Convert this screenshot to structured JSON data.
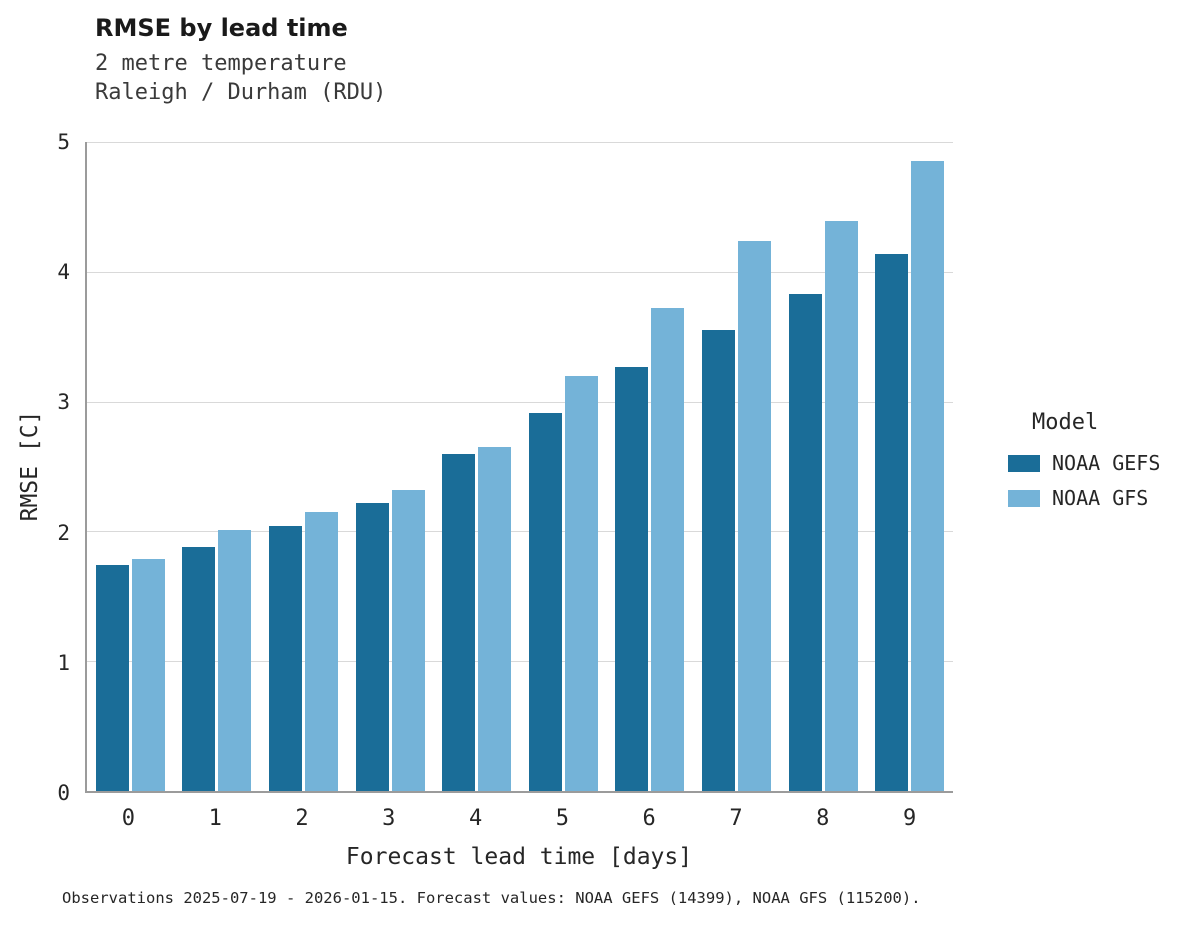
{
  "chart_data": {
    "type": "bar",
    "title": "RMSE by lead time",
    "subtitle": [
      "2 metre temperature",
      "Raleigh / Durham (RDU)"
    ],
    "xlabel": "Forecast lead time [days]",
    "ylabel": "RMSE [C]",
    "categories": [
      "0",
      "1",
      "2",
      "3",
      "4",
      "5",
      "6",
      "7",
      "8",
      "9"
    ],
    "series": [
      {
        "name": "NOAA GEFS",
        "color": "#1a6d98",
        "values": [
          1.74,
          1.88,
          2.04,
          2.22,
          2.6,
          2.91,
          3.27,
          3.55,
          3.83,
          4.14
        ]
      },
      {
        "name": "NOAA GFS",
        "color": "#74b3d8",
        "values": [
          1.79,
          2.01,
          2.15,
          2.32,
          2.65,
          3.2,
          3.72,
          4.24,
          4.39,
          4.85
        ]
      }
    ],
    "ylim": [
      0,
      5
    ],
    "yticks": [
      0,
      1,
      2,
      3,
      4,
      5
    ],
    "grid": "horizontal",
    "legend_title": "Model",
    "legend_position": "right"
  },
  "caption": "Observations 2025-07-19 - 2026-01-15. Forecast values: NOAA GEFS (14399), NOAA GFS (115200)."
}
